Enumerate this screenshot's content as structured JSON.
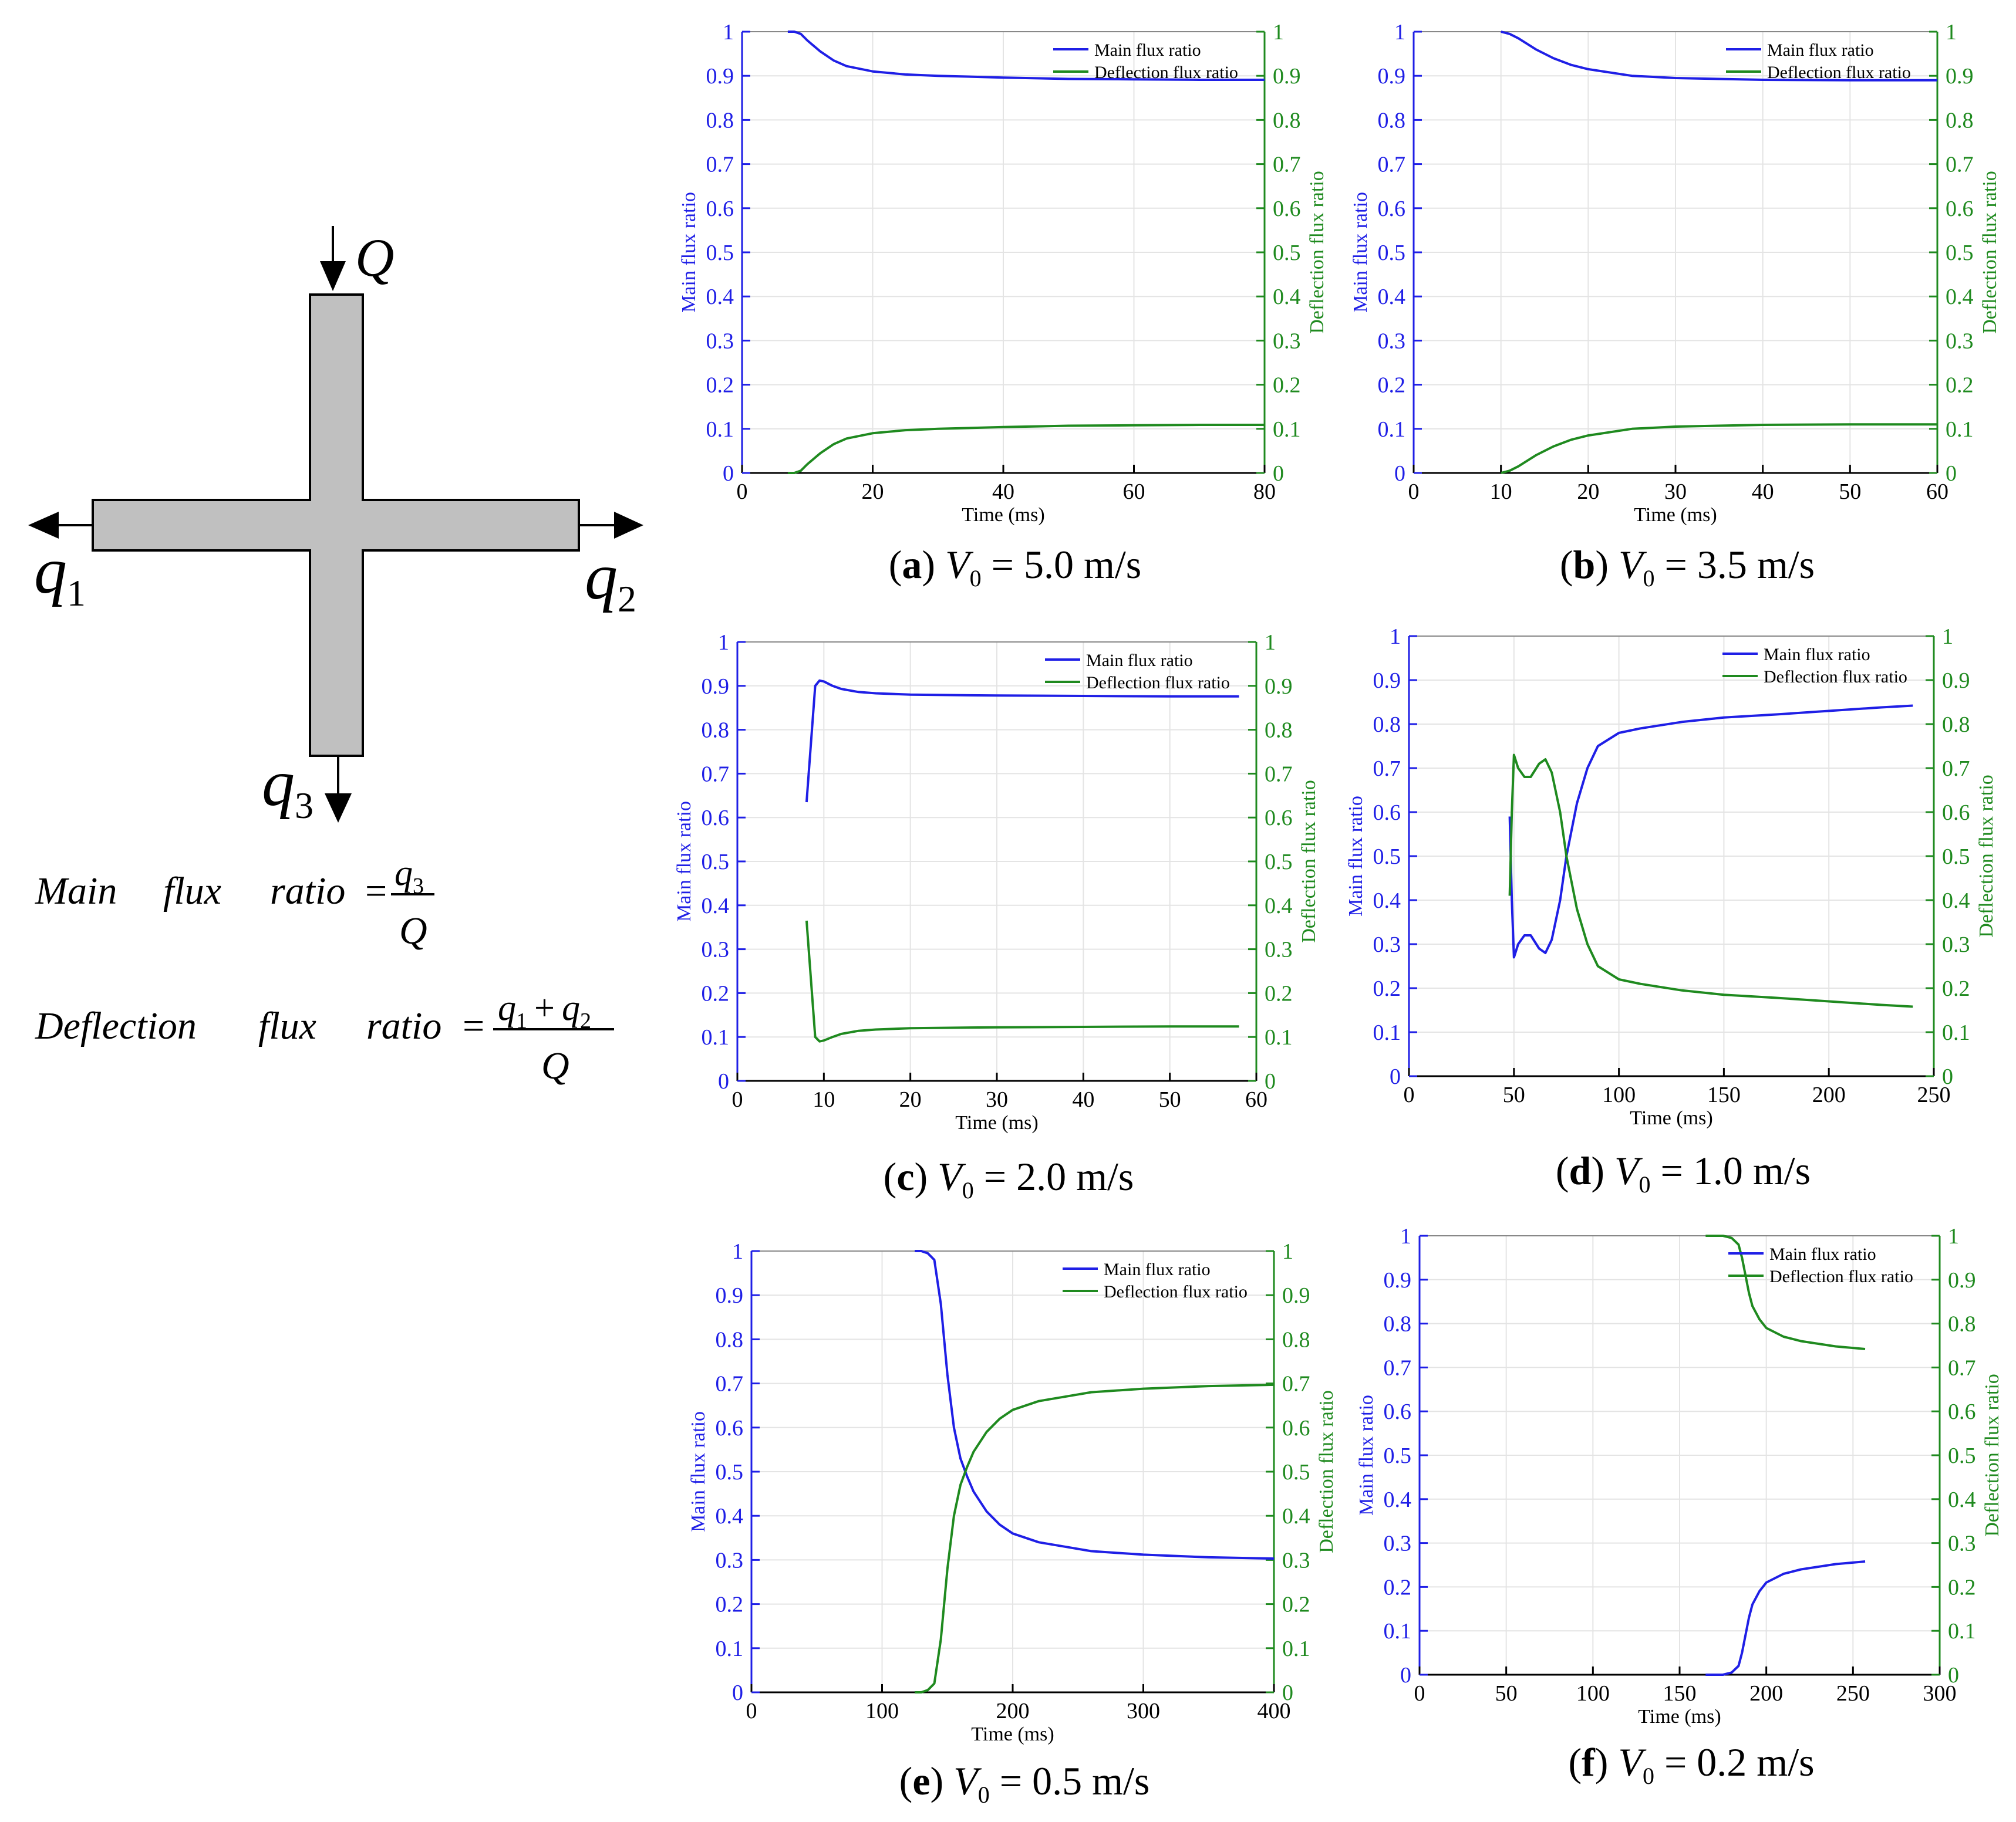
{
  "diagram": {
    "inlet_label": "Q",
    "outlet_left_label": "q",
    "outlet_left_sub": "1",
    "outlet_right_label": "q",
    "outlet_right_sub": "2",
    "outlet_bottom_label": "q",
    "outlet_bottom_sub": "3"
  },
  "formulas": {
    "main_label": [
      "Main",
      "flux",
      "ratio"
    ],
    "main_num": "q",
    "main_num_sub": "3",
    "main_den": "Q",
    "deflection_label": [
      "Deflection",
      "flux",
      "ratio"
    ],
    "deflection_num_a": "q",
    "deflection_num_a_sub": "1",
    "deflection_num_plus": "+",
    "deflection_num_b": "q",
    "deflection_num_b_sub": "2",
    "deflection_den": "Q",
    "equals": "="
  },
  "colors": {
    "main": "#1f1fe6",
    "deflection": "#1f8a1f",
    "axis": "#000000",
    "grid": "#e4e4e4"
  },
  "chart_data": [
    {
      "id": "a",
      "type": "line",
      "caption_letter": "a",
      "caption_text": "V",
      "caption_sub": "0",
      "caption_value": " = 5.0 m/s",
      "xlabel": "Time (ms)",
      "ylabel_left": "Main flux ratio",
      "ylabel_right": "Deflection flux ratio",
      "xlim": [
        0,
        80
      ],
      "xticks": [
        0,
        20,
        40,
        60,
        80
      ],
      "ylim": [
        0,
        1
      ],
      "yticks": [
        0,
        0.1,
        0.2,
        0.3,
        0.4,
        0.5,
        0.6,
        0.7,
        0.8,
        0.9,
        1
      ],
      "grid": true,
      "legend_position": "top-right",
      "series": [
        {
          "name": "Main flux ratio",
          "x": [
            7,
            8,
            9,
            10,
            12,
            14,
            16,
            20,
            25,
            30,
            40,
            50,
            60,
            70,
            80
          ],
          "y": [
            1.0,
            1.0,
            0.995,
            0.98,
            0.955,
            0.935,
            0.922,
            0.91,
            0.903,
            0.9,
            0.896,
            0.893,
            0.892,
            0.891,
            0.891
          ]
        },
        {
          "name": "Deflection flux ratio",
          "x": [
            7,
            8,
            9,
            10,
            12,
            14,
            16,
            20,
            25,
            30,
            40,
            50,
            60,
            70,
            80
          ],
          "y": [
            0.0,
            0.0,
            0.005,
            0.02,
            0.045,
            0.065,
            0.078,
            0.09,
            0.097,
            0.1,
            0.104,
            0.107,
            0.108,
            0.109,
            0.109
          ]
        }
      ]
    },
    {
      "id": "b",
      "type": "line",
      "caption_letter": "b",
      "caption_text": "V",
      "caption_sub": "0",
      "caption_value": " = 3.5 m/s",
      "xlabel": "Time (ms)",
      "ylabel_left": "Main flux ratio",
      "ylabel_right": "Deflection flux ratio",
      "xlim": [
        0,
        60
      ],
      "xticks": [
        0,
        10,
        20,
        30,
        40,
        50,
        60
      ],
      "ylim": [
        0,
        1
      ],
      "yticks": [
        0,
        0.1,
        0.2,
        0.3,
        0.4,
        0.5,
        0.6,
        0.7,
        0.8,
        0.9,
        1
      ],
      "grid": true,
      "legend_position": "top-right",
      "series": [
        {
          "name": "Main flux ratio",
          "x": [
            10,
            11,
            12,
            14,
            16,
            18,
            20,
            25,
            30,
            40,
            50,
            60
          ],
          "y": [
            1.0,
            0.995,
            0.985,
            0.96,
            0.94,
            0.925,
            0.915,
            0.9,
            0.895,
            0.891,
            0.89,
            0.89
          ]
        },
        {
          "name": "Deflection flux ratio",
          "x": [
            10,
            11,
            12,
            14,
            16,
            18,
            20,
            25,
            30,
            40,
            50,
            60
          ],
          "y": [
            0.0,
            0.005,
            0.015,
            0.04,
            0.06,
            0.075,
            0.085,
            0.1,
            0.105,
            0.109,
            0.11,
            0.11
          ]
        }
      ]
    },
    {
      "id": "c",
      "type": "line",
      "caption_letter": "c",
      "caption_text": "V",
      "caption_sub": "0",
      "caption_value": " = 2.0 m/s",
      "xlabel": "Time (ms)",
      "ylabel_left": "Main flux ratio",
      "ylabel_right": "Deflection flux ratio",
      "xlim": [
        0,
        60
      ],
      "xticks": [
        0,
        10,
        20,
        30,
        40,
        50,
        60
      ],
      "ylim": [
        0,
        1
      ],
      "yticks": [
        0,
        0.1,
        0.2,
        0.3,
        0.4,
        0.5,
        0.6,
        0.7,
        0.8,
        0.9,
        1
      ],
      "grid": true,
      "legend_position": "top-right",
      "series": [
        {
          "name": "Main flux ratio",
          "x": [
            8,
            9,
            9.5,
            10,
            11,
            12,
            14,
            16,
            20,
            30,
            40,
            50,
            58
          ],
          "y": [
            0.635,
            0.9,
            0.912,
            0.91,
            0.9,
            0.893,
            0.886,
            0.883,
            0.88,
            0.878,
            0.877,
            0.876,
            0.876
          ]
        },
        {
          "name": "Deflection flux ratio",
          "x": [
            8,
            9,
            9.5,
            10,
            11,
            12,
            14,
            16,
            20,
            30,
            40,
            50,
            58
          ],
          "y": [
            0.365,
            0.1,
            0.09,
            0.092,
            0.1,
            0.107,
            0.114,
            0.117,
            0.12,
            0.122,
            0.123,
            0.124,
            0.124
          ]
        }
      ]
    },
    {
      "id": "d",
      "type": "line",
      "caption_letter": "d",
      "caption_text": "V",
      "caption_sub": "0",
      "caption_value": " = 1.0 m/s",
      "xlabel": "Time (ms)",
      "ylabel_left": "Main flux ratio",
      "ylabel_right": "Deflection flux ratio",
      "xlim": [
        0,
        250
      ],
      "xticks": [
        0,
        50,
        100,
        150,
        200,
        250
      ],
      "ylim": [
        0,
        1
      ],
      "yticks": [
        0,
        0.1,
        0.2,
        0.3,
        0.4,
        0.5,
        0.6,
        0.7,
        0.8,
        0.9,
        1
      ],
      "grid": true,
      "legend_position": "top-right",
      "series": [
        {
          "name": "Main flux ratio",
          "x": [
            48,
            49,
            50,
            52,
            55,
            58,
            62,
            65,
            68,
            72,
            75,
            80,
            85,
            90,
            100,
            110,
            130,
            150,
            175,
            200,
            225,
            240
          ],
          "y": [
            0.59,
            0.4,
            0.27,
            0.3,
            0.32,
            0.32,
            0.29,
            0.28,
            0.31,
            0.4,
            0.5,
            0.62,
            0.7,
            0.75,
            0.78,
            0.79,
            0.805,
            0.815,
            0.822,
            0.83,
            0.838,
            0.842
          ]
        },
        {
          "name": "Deflection flux ratio",
          "x": [
            48,
            49,
            50,
            52,
            55,
            58,
            62,
            65,
            68,
            72,
            75,
            80,
            85,
            90,
            100,
            110,
            130,
            150,
            175,
            200,
            225,
            240
          ],
          "y": [
            0.41,
            0.6,
            0.73,
            0.7,
            0.68,
            0.68,
            0.71,
            0.72,
            0.69,
            0.6,
            0.5,
            0.38,
            0.3,
            0.25,
            0.22,
            0.21,
            0.195,
            0.185,
            0.178,
            0.17,
            0.162,
            0.158
          ]
        }
      ]
    },
    {
      "id": "e",
      "type": "line",
      "caption_letter": "e",
      "caption_text": "V",
      "caption_sub": "0",
      "caption_value": " = 0.5 m/s",
      "xlabel": "Time (ms)",
      "ylabel_left": "Main flux ratio",
      "ylabel_right": "Deflection flux ratio",
      "xlim": [
        0,
        400
      ],
      "xticks": [
        0,
        100,
        200,
        300,
        400
      ],
      "ylim": [
        0,
        1
      ],
      "yticks": [
        0,
        0.1,
        0.2,
        0.3,
        0.4,
        0.5,
        0.6,
        0.7,
        0.8,
        0.9,
        1
      ],
      "grid": true,
      "legend_position": "top-right",
      "series": [
        {
          "name": "Main flux ratio",
          "x": [
            125,
            130,
            135,
            140,
            145,
            150,
            155,
            160,
            165,
            170,
            180,
            190,
            200,
            220,
            240,
            260,
            300,
            350,
            400
          ],
          "y": [
            1.0,
            1.0,
            0.995,
            0.98,
            0.88,
            0.72,
            0.6,
            0.53,
            0.49,
            0.455,
            0.41,
            0.38,
            0.36,
            0.34,
            0.33,
            0.32,
            0.312,
            0.306,
            0.303
          ]
        },
        {
          "name": "Deflection flux ratio",
          "x": [
            125,
            130,
            135,
            140,
            145,
            150,
            155,
            160,
            165,
            170,
            180,
            190,
            200,
            220,
            240,
            260,
            300,
            350,
            400
          ],
          "y": [
            0.0,
            0.0,
            0.005,
            0.02,
            0.12,
            0.28,
            0.4,
            0.47,
            0.51,
            0.545,
            0.59,
            0.62,
            0.64,
            0.66,
            0.67,
            0.68,
            0.688,
            0.694,
            0.697
          ]
        }
      ]
    },
    {
      "id": "f",
      "type": "line",
      "caption_letter": "f",
      "caption_text": "V",
      "caption_sub": "0",
      "caption_value": " = 0.2 m/s",
      "xlabel": "Time (ms)",
      "ylabel_left": "Main flux ratio",
      "ylabel_right": "Deflection flux ratio",
      "xlim": [
        0,
        300
      ],
      "xticks": [
        0,
        50,
        100,
        150,
        200,
        250,
        300
      ],
      "ylim": [
        0,
        1
      ],
      "yticks": [
        0,
        0.1,
        0.2,
        0.3,
        0.4,
        0.5,
        0.6,
        0.7,
        0.8,
        0.9,
        1
      ],
      "grid": true,
      "legend_position": "top-right",
      "series": [
        {
          "name": "Main flux ratio",
          "x": [
            165,
            175,
            180,
            184,
            186,
            188,
            190,
            192,
            196,
            200,
            210,
            220,
            240,
            257
          ],
          "y": [
            0.0,
            0.0,
            0.005,
            0.02,
            0.05,
            0.09,
            0.13,
            0.16,
            0.19,
            0.21,
            0.23,
            0.24,
            0.252,
            0.258
          ]
        },
        {
          "name": "Deflection flux ratio",
          "x": [
            165,
            175,
            180,
            184,
            186,
            188,
            190,
            192,
            196,
            200,
            210,
            220,
            240,
            257
          ],
          "y": [
            1.0,
            1.0,
            0.995,
            0.98,
            0.95,
            0.91,
            0.87,
            0.84,
            0.81,
            0.79,
            0.77,
            0.76,
            0.748,
            0.742
          ]
        }
      ]
    }
  ]
}
